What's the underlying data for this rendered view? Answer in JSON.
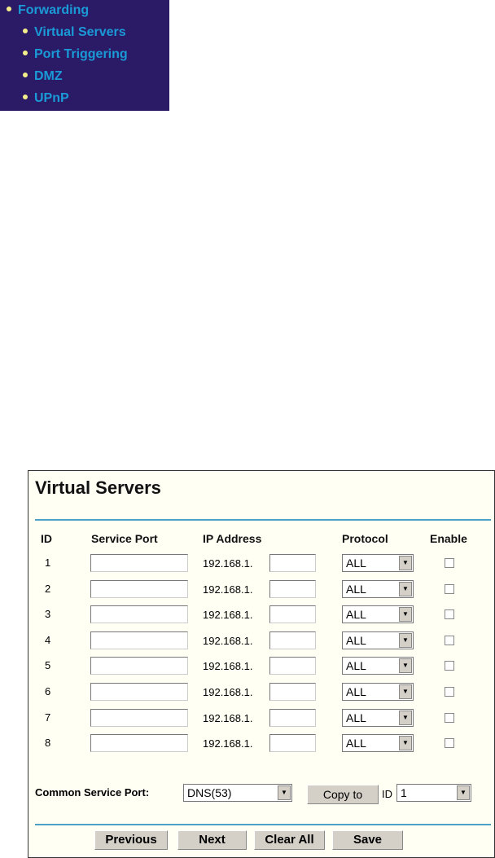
{
  "nav": {
    "items": [
      {
        "label": "Forwarding"
      },
      {
        "label": "Virtual Servers"
      },
      {
        "label": "Port Triggering"
      },
      {
        "label": "DMZ"
      },
      {
        "label": "UPnP"
      }
    ]
  },
  "panel": {
    "title": "Virtual Servers",
    "headers": {
      "id": "ID",
      "service_port": "Service Port",
      "ip_address": "IP Address",
      "protocol": "Protocol",
      "enable": "Enable"
    },
    "rows": [
      {
        "id": "1",
        "ip_prefix": "192.168.1.",
        "protocol": "ALL",
        "enabled": false
      },
      {
        "id": "2",
        "ip_prefix": "192.168.1.",
        "protocol": "ALL",
        "enabled": false
      },
      {
        "id": "3",
        "ip_prefix": "192.168.1.",
        "protocol": "ALL",
        "enabled": false
      },
      {
        "id": "4",
        "ip_prefix": "192.168.1.",
        "protocol": "ALL",
        "enabled": false
      },
      {
        "id": "5",
        "ip_prefix": "192.168.1.",
        "protocol": "ALL",
        "enabled": false
      },
      {
        "id": "6",
        "ip_prefix": "192.168.1.",
        "protocol": "ALL",
        "enabled": false
      },
      {
        "id": "7",
        "ip_prefix": "192.168.1.",
        "protocol": "ALL",
        "enabled": false
      },
      {
        "id": "8",
        "ip_prefix": "192.168.1.",
        "protocol": "ALL",
        "enabled": false
      }
    ],
    "common": {
      "label": "Common Service Port:",
      "value": "DNS(53)",
      "copy_label": "Copy to",
      "id_label": "ID",
      "id_value": "1"
    },
    "buttons": {
      "previous": "Previous",
      "next": "Next",
      "clear_all": "Clear All",
      "save": "Save"
    }
  },
  "colors": {
    "nav_bg": "#2b1a66",
    "nav_text": "#1a9ad6",
    "bullet": "#f4ee8a",
    "rule": "#4aa3c6",
    "panel_bg": "#fffff4"
  }
}
